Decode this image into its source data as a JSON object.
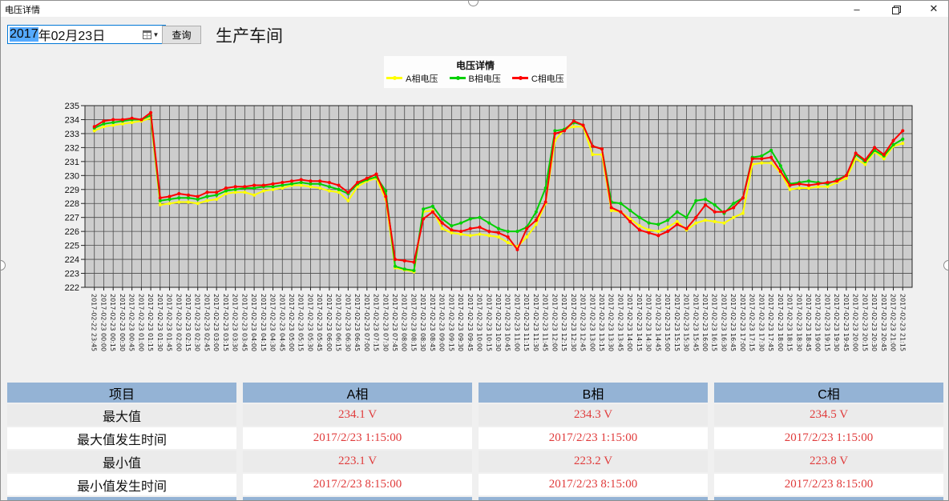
{
  "window": {
    "title": "电压详情",
    "controls": {
      "minimize": "–",
      "restore": "",
      "close": "✕"
    }
  },
  "toolbar": {
    "date_year": "2017",
    "date_rest": "年02月23日",
    "query_label": "查询",
    "workshop_label": "生产车间"
  },
  "legend": {
    "title": "电压详情",
    "items": [
      {
        "label": "A相电压",
        "color": "#ffff00"
      },
      {
        "label": "B相电压",
        "color": "#00d000"
      },
      {
        "label": "C相电压",
        "color": "#ff0000"
      }
    ]
  },
  "colors": {
    "plot_bg": "#cdcdcd",
    "grid": "#4a4a4a",
    "plot_border": "#222222",
    "table_header_bg": "#94b3d5",
    "value_red": "#e03b3b",
    "datepicker_border": "#0078d7"
  },
  "chart_data": {
    "type": "line",
    "title": "电压详情",
    "xlabel": "",
    "ylabel": "",
    "ylim": [
      222,
      235
    ],
    "y_ticks": [
      222,
      223,
      224,
      225,
      226,
      227,
      228,
      229,
      230,
      231,
      232,
      233,
      234,
      235
    ],
    "grid": true,
    "legend_position": "top",
    "categories": [
      "2017-02-22 23:45",
      "2017-02-23 00:00",
      "2017-02-23 00:15",
      "2017-02-23 00:30",
      "2017-02-23 00:45",
      "2017-02-23 01:00",
      "2017-02-23 01:15",
      "2017-02-23 01:30",
      "2017-02-23 01:45",
      "2017-02-23 02:00",
      "2017-02-23 02:15",
      "2017-02-23 02:30",
      "2017-02-23 02:45",
      "2017-02-23 03:00",
      "2017-02-23 03:15",
      "2017-02-23 03:30",
      "2017-02-23 03:45",
      "2017-02-23 04:00",
      "2017-02-23 04:15",
      "2017-02-23 04:30",
      "2017-02-23 04:45",
      "2017-02-23 05:00",
      "2017-02-23 05:15",
      "2017-02-23 05:30",
      "2017-02-23 05:45",
      "2017-02-23 06:00",
      "2017-02-23 06:15",
      "2017-02-23 06:30",
      "2017-02-23 06:45",
      "2017-02-23 07:00",
      "2017-02-23 07:15",
      "2017-02-23 07:30",
      "2017-02-23 07:45",
      "2017-02-23 08:00",
      "2017-02-23 08:15",
      "2017-02-23 08:30",
      "2017-02-23 08:45",
      "2017-02-23 09:00",
      "2017-02-23 09:15",
      "2017-02-23 09:30",
      "2017-02-23 09:45",
      "2017-02-23 10:00",
      "2017-02-23 10:15",
      "2017-02-23 10:30",
      "2017-02-23 10:45",
      "2017-02-23 11:00",
      "2017-02-23 11:15",
      "2017-02-23 11:30",
      "2017-02-23 11:45",
      "2017-02-23 12:00",
      "2017-02-23 12:15",
      "2017-02-23 12:30",
      "2017-02-23 12:45",
      "2017-02-23 13:00",
      "2017-02-23 13:15",
      "2017-02-23 13:30",
      "2017-02-23 13:45",
      "2017-02-23 14:00",
      "2017-02-23 14:15",
      "2017-02-23 14:30",
      "2017-02-23 14:45",
      "2017-02-23 15:00",
      "2017-02-23 15:15",
      "2017-02-23 15:30",
      "2017-02-23 15:45",
      "2017-02-23 16:00",
      "2017-02-23 16:15",
      "2017-02-23 16:30",
      "2017-02-23 16:45",
      "2017-02-23 17:00",
      "2017-02-23 17:15",
      "2017-02-23 17:30",
      "2017-02-23 17:45",
      "2017-02-23 18:00",
      "2017-02-23 18:15",
      "2017-02-23 18:30",
      "2017-02-23 18:45",
      "2017-02-23 19:00",
      "2017-02-23 19:15",
      "2017-02-23 19:30",
      "2017-02-23 19:45",
      "2017-02-23 20:00",
      "2017-02-23 20:15",
      "2017-02-23 20:30",
      "2017-02-23 20:45",
      "2017-02-23 21:00",
      "2017-02-23 21:15"
    ],
    "series": [
      {
        "name": "A相电压",
        "color": "#ffff00",
        "values": [
          233.2,
          233.5,
          233.6,
          233.7,
          233.8,
          233.9,
          234.1,
          227.9,
          228.0,
          228.1,
          228.1,
          228.0,
          228.2,
          228.3,
          228.7,
          228.8,
          228.8,
          228.6,
          228.9,
          229.0,
          229.1,
          229.3,
          229.3,
          229.2,
          229.1,
          228.9,
          228.8,
          228.2,
          229.2,
          229.6,
          229.8,
          228.3,
          223.4,
          223.25,
          223.1,
          227.4,
          227.5,
          226.2,
          225.9,
          225.8,
          225.7,
          225.8,
          225.7,
          225.6,
          225.2,
          224.9,
          225.6,
          226.5,
          228.0,
          232.5,
          233.3,
          233.5,
          233.5,
          231.5,
          231.5,
          227.5,
          227.4,
          226.9,
          226.4,
          226.1,
          226.0,
          226.3,
          226.7,
          226.1,
          226.6,
          226.8,
          226.7,
          226.6,
          227.0,
          227.3,
          230.8,
          230.9,
          230.9,
          230.2,
          229.0,
          229.1,
          229.1,
          229.2,
          229.2,
          229.5,
          229.8,
          231.2,
          230.8,
          231.7,
          231.2,
          232.1,
          232.3
        ]
      },
      {
        "name": "B相电压",
        "color": "#00d000",
        "values": [
          233.4,
          233.7,
          233.8,
          233.9,
          234.0,
          234.0,
          234.3,
          228.2,
          228.3,
          228.4,
          228.4,
          228.3,
          228.5,
          228.6,
          228.9,
          229.0,
          229.1,
          229.1,
          229.2,
          229.2,
          229.3,
          229.4,
          229.5,
          229.4,
          229.4,
          229.2,
          229.0,
          228.7,
          229.4,
          229.7,
          229.9,
          228.9,
          223.5,
          223.3,
          223.2,
          227.6,
          227.8,
          226.9,
          226.4,
          226.6,
          226.9,
          227.0,
          226.6,
          226.2,
          226.0,
          226.0,
          226.3,
          227.4,
          229.1,
          233.2,
          233.3,
          233.8,
          233.6,
          232.1,
          231.9,
          228.1,
          228.0,
          227.5,
          227.0,
          226.6,
          226.5,
          226.8,
          227.4,
          227.0,
          228.2,
          228.3,
          227.9,
          227.3,
          228.0,
          228.4,
          231.3,
          231.4,
          231.8,
          230.7,
          229.4,
          229.5,
          229.6,
          229.5,
          229.4,
          229.7,
          230.0,
          231.5,
          231.0,
          231.8,
          231.4,
          232.2,
          232.6
        ]
      },
      {
        "name": "C相电压",
        "color": "#ff0000",
        "values": [
          233.5,
          233.9,
          234.0,
          234.0,
          234.1,
          234.0,
          234.5,
          228.4,
          228.5,
          228.7,
          228.6,
          228.5,
          228.8,
          228.8,
          229.1,
          229.2,
          229.2,
          229.3,
          229.3,
          229.4,
          229.5,
          229.6,
          229.7,
          229.6,
          229.6,
          229.5,
          229.3,
          228.8,
          229.5,
          229.8,
          230.1,
          228.5,
          224.0,
          223.9,
          223.8,
          226.9,
          227.4,
          226.6,
          226.1,
          226.0,
          226.2,
          226.3,
          226.0,
          225.9,
          225.6,
          224.7,
          226.2,
          226.8,
          228.1,
          233.0,
          233.2,
          233.9,
          233.6,
          232.1,
          231.9,
          227.7,
          227.4,
          226.7,
          226.1,
          225.9,
          225.7,
          226.0,
          226.5,
          226.2,
          227.0,
          227.9,
          227.4,
          227.4,
          227.7,
          228.4,
          231.2,
          231.2,
          231.3,
          230.3,
          229.3,
          229.4,
          229.3,
          229.4,
          229.5,
          229.6,
          230.0,
          231.6,
          231.1,
          232.0,
          231.5,
          232.5,
          233.2
        ]
      }
    ]
  },
  "table": {
    "headers": [
      "项目",
      "A相",
      "B相",
      "C相"
    ],
    "rows": [
      {
        "label": "最大值",
        "values": [
          "234.1 V",
          "234.3 V",
          "234.5 V"
        ]
      },
      {
        "label": "最大值发生时间",
        "values": [
          "2017/2/23 1:15:00",
          "2017/2/23 1:15:00",
          "2017/2/23 1:15:00"
        ]
      },
      {
        "label": "最小值",
        "values": [
          "223.1 V",
          "223.2 V",
          "223.8 V"
        ]
      },
      {
        "label": "最小值发生时间",
        "values": [
          "2017/2/23 8:15:00",
          "2017/2/23 8:15:00",
          "2017/2/23 8:15:00"
        ]
      }
    ]
  }
}
